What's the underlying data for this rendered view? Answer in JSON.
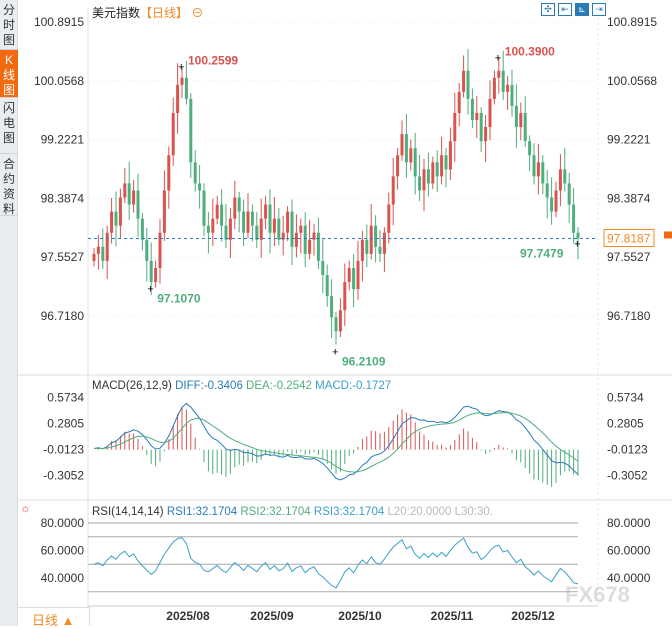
{
  "sidebar": {
    "tabs": [
      {
        "label": "分时图",
        "active": false
      },
      {
        "label": "K线图",
        "active": true
      },
      {
        "label": "闪电图",
        "active": false
      },
      {
        "label": "合约资料",
        "active": false
      }
    ]
  },
  "header": {
    "instrument": "美元指数",
    "timeframe": "【日线】",
    "zoom_icon": "zoom-out-icon"
  },
  "toolbar": {
    "icons": [
      "crosshair-icon",
      "range-start-icon",
      "range-end-icon",
      "jump-latest-icon"
    ],
    "active_index": 2
  },
  "footer": {
    "timeframe_label": "日线 ▲"
  },
  "watermark": "FX678",
  "colors": {
    "up": "#d9534f",
    "down": "#4fae7d",
    "accent": "#f26a10",
    "diff": "#2a7bb8",
    "dea": "#4fae7d",
    "rsi": "#3aa0c8"
  },
  "chart_data": {
    "type": "candlestick",
    "price_axis": {
      "ticks": [
        "100.8915",
        "100.0568",
        "99.2221",
        "98.3874",
        "97.5527",
        "96.7180"
      ],
      "range": [
        96.0,
        101.1
      ]
    },
    "x_ticks": [
      "2025/08",
      "2025/09",
      "2025/10",
      "2025/11",
      "2025/12"
    ],
    "closes": [
      97.6,
      97.7,
      97.5,
      97.9,
      98.2,
      98.0,
      98.4,
      98.6,
      98.3,
      98.5,
      98.1,
      97.8,
      97.5,
      97.2,
      97.4,
      97.9,
      98.5,
      99.0,
      99.6,
      100.0,
      100.1,
      99.8,
      98.9,
      98.6,
      98.5,
      98.0,
      97.9,
      98.1,
      98.3,
      98.0,
      97.8,
      98.1,
      98.4,
      98.2,
      97.9,
      98.2,
      98.0,
      97.8,
      98.1,
      98.3,
      97.9,
      98.1,
      97.8,
      97.9,
      98.2,
      97.7,
      97.9,
      98.0,
      97.6,
      97.8,
      97.9,
      97.5,
      97.3,
      97.0,
      96.7,
      96.5,
      96.8,
      97.2,
      97.4,
      97.1,
      97.5,
      97.8,
      97.6,
      98.0,
      97.7,
      97.6,
      97.9,
      98.3,
      98.7,
      99.0,
      99.3,
      98.9,
      99.1,
      98.7,
      98.5,
      98.8,
      98.6,
      98.9,
      98.7,
      99.0,
      98.8,
      99.2,
      99.6,
      99.9,
      100.2,
      99.8,
      99.5,
      99.6,
      99.2,
      99.4,
      99.8,
      100.1,
      100.2,
      99.9,
      100.0,
      99.7,
      99.4,
      99.6,
      99.2,
      99.0,
      98.7,
      98.9,
      98.6,
      98.4,
      98.2,
      98.5,
      98.8,
      98.6,
      98.3,
      97.9,
      97.82
    ],
    "annotations": {
      "high1": "100.2599",
      "high2": "100.3900",
      "low1": "97.1070",
      "low2": "96.2109",
      "low3": "97.7479"
    },
    "current_price": "97.8187",
    "macd": {
      "label": "MACD(26,12,9)",
      "diff": "DIFF:-0.3406",
      "dea": "DEA:-0.2542",
      "macd": "MACD:-0.1727",
      "ticks": [
        "0.5734",
        "0.2805",
        "-0.0123",
        "-0.3052"
      ],
      "range": [
        -0.62,
        0.62
      ]
    },
    "rsi": {
      "label": "RSI(14,14,14)",
      "rsi1": "RSI1:32.1704",
      "rsi2": "RSI2:32.1704",
      "rsi3": "RSI3:32.1704",
      "l20": "L20:20.0000",
      "l30": "L30:30.",
      "ticks": [
        "80.0000",
        "60.0000",
        "40.0000"
      ],
      "levels": [
        80,
        70,
        50,
        30
      ]
    }
  }
}
